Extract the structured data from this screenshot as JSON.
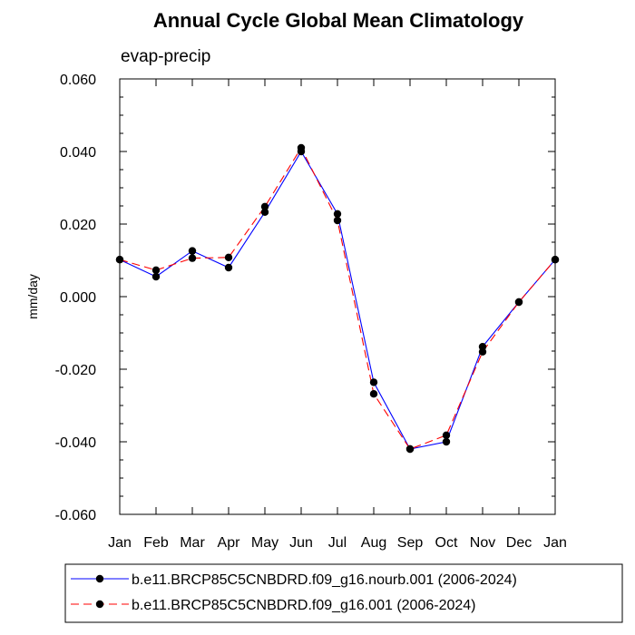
{
  "chart_data": {
    "type": "line",
    "title": "Annual Cycle Global Mean Climatology",
    "subtitle": "evap-precip",
    "ylabel": "mm/day",
    "xlabel": "",
    "categories": [
      "Jan",
      "Feb",
      "Mar",
      "Apr",
      "May",
      "Jun",
      "Jul",
      "Aug",
      "Sep",
      "Oct",
      "Nov",
      "Dec",
      "Jan"
    ],
    "ylim": [
      -0.06,
      0.06
    ],
    "yticks": [
      "0.060",
      "0.040",
      "0.020",
      "0.000",
      "-0.020",
      "-0.040",
      "-0.060"
    ],
    "ytick_values": [
      0.06,
      0.04,
      0.02,
      0.0,
      -0.02,
      -0.04,
      -0.06
    ],
    "grid": false,
    "legend_position": "bottom",
    "series": [
      {
        "name": "b.e11.BRCP85C5CNBDRD.f09_g16.nourb.001 (2006-2024)",
        "color": "#0000ff",
        "dash": "solid",
        "marker": "circle",
        "values": [
          0.0102,
          0.0055,
          0.0126,
          0.008,
          0.0233,
          0.04,
          0.0228,
          -0.0236,
          -0.042,
          -0.04,
          -0.0138,
          -0.0015,
          0.0102
        ]
      },
      {
        "name": "b.e11.BRCP85C5CNBDRD.f09_g16.001 (2006-2024)",
        "color": "#ff0000",
        "dash": "dashed",
        "marker": "circle",
        "values": [
          0.0102,
          0.0073,
          0.0106,
          0.0108,
          0.0248,
          0.041,
          0.021,
          -0.0268,
          -0.042,
          -0.0382,
          -0.0152,
          -0.0015,
          0.0102
        ]
      }
    ]
  }
}
